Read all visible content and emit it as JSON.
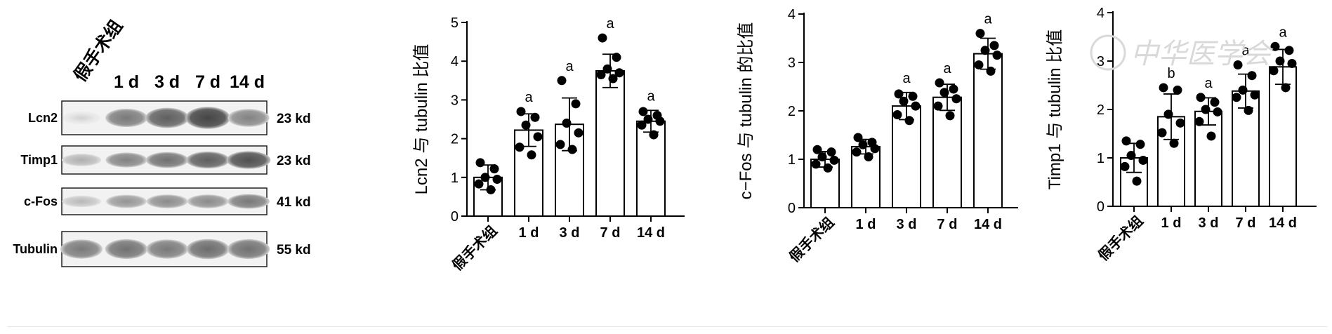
{
  "blot": {
    "lanes": [
      "假手术组",
      "1 d",
      "3 d",
      "7 d",
      "14 d"
    ],
    "rows": [
      {
        "protein": "Lcn2",
        "kd": "23 kd",
        "intensity": [
          0.15,
          0.65,
          0.8,
          0.95,
          0.6
        ]
      },
      {
        "protein": "Timp1",
        "kd": "23 kd",
        "intensity": [
          0.35,
          0.6,
          0.7,
          0.8,
          0.88
        ]
      },
      {
        "protein": "c-Fos",
        "kd": "41 kd",
        "intensity": [
          0.3,
          0.5,
          0.55,
          0.55,
          0.65
        ]
      },
      {
        "protein": "Tubulin",
        "kd": "55 kd",
        "intensity": [
          0.65,
          0.7,
          0.65,
          0.72,
          0.7
        ]
      }
    ]
  },
  "chart_data": [
    {
      "type": "bar",
      "ylabel": "Lcn2 与 tubulin 比值",
      "categories": [
        "假手术组",
        "1 d",
        "3 d",
        "7 d",
        "14 d"
      ],
      "values": [
        1.0,
        2.22,
        2.37,
        3.75,
        2.45
      ],
      "error": [
        0.32,
        0.42,
        0.68,
        0.43,
        0.28
      ],
      "points": [
        [
          1.38,
          1.22,
          1.0,
          0.95,
          0.83,
          0.68
        ],
        [
          2.7,
          2.55,
          2.35,
          2.05,
          1.78,
          1.58
        ],
        [
          3.5,
          2.9,
          2.4,
          2.15,
          1.85,
          1.72
        ],
        [
          4.6,
          4.1,
          3.8,
          3.7,
          3.65,
          3.55
        ],
        [
          2.7,
          2.6,
          2.5,
          2.45,
          2.35,
          2.1
        ]
      ],
      "sig": [
        "",
        "a",
        "a",
        "a",
        "a"
      ],
      "ylim": [
        0,
        5
      ],
      "yticks": [
        0,
        1,
        2,
        3,
        4,
        5
      ],
      "rotate_first_label": true
    },
    {
      "type": "bar",
      "ylabel": "c−Fos 与 tubulin 的比值",
      "categories": [
        "假手术组",
        "1 d",
        "3 d",
        "7 d",
        "14 d"
      ],
      "values": [
        1.0,
        1.26,
        2.1,
        2.28,
        3.18
      ],
      "error": [
        0.16,
        0.15,
        0.28,
        0.27,
        0.32
      ],
      "points": [
        [
          1.2,
          1.15,
          1.05,
          0.98,
          0.9,
          0.82
        ],
        [
          1.45,
          1.35,
          1.3,
          1.22,
          1.15,
          1.05
        ],
        [
          2.35,
          2.3,
          2.2,
          2.1,
          1.92,
          1.8
        ],
        [
          2.58,
          2.45,
          2.38,
          2.25,
          2.1,
          1.9
        ],
        [
          3.6,
          3.35,
          3.25,
          3.15,
          2.95,
          2.82
        ]
      ],
      "sig": [
        "",
        "",
        "a",
        "a",
        "a"
      ],
      "ylim": [
        0,
        4
      ],
      "yticks": [
        0,
        1,
        2,
        3,
        4
      ],
      "rotate_first_label": true
    },
    {
      "type": "bar",
      "ylabel": "Timp1 与 tubulin 比值",
      "categories": [
        "假手术组",
        "1 d",
        "3 d",
        "7 d",
        "14 d"
      ],
      "values": [
        1.0,
        1.85,
        1.96,
        2.38,
        2.88
      ],
      "error": [
        0.3,
        0.47,
        0.28,
        0.35,
        0.36
      ],
      "points": [
        [
          1.35,
          1.28,
          1.05,
          0.95,
          0.82,
          0.52
        ],
        [
          2.45,
          2.4,
          1.9,
          1.72,
          1.52,
          1.3
        ],
        [
          2.25,
          2.15,
          2.0,
          1.95,
          1.75,
          1.45
        ],
        [
          2.92,
          2.7,
          2.4,
          2.3,
          2.25,
          1.98
        ],
        [
          3.3,
          3.22,
          3.0,
          2.95,
          2.8,
          2.45
        ]
      ],
      "sig": [
        "",
        "b",
        "a",
        "a",
        "a"
      ],
      "ylim": [
        0,
        4
      ],
      "yticks": [
        0,
        1,
        2,
        3,
        4
      ],
      "rotate_first_label": true
    }
  ],
  "watermark": {
    "text": "中华医学会"
  }
}
